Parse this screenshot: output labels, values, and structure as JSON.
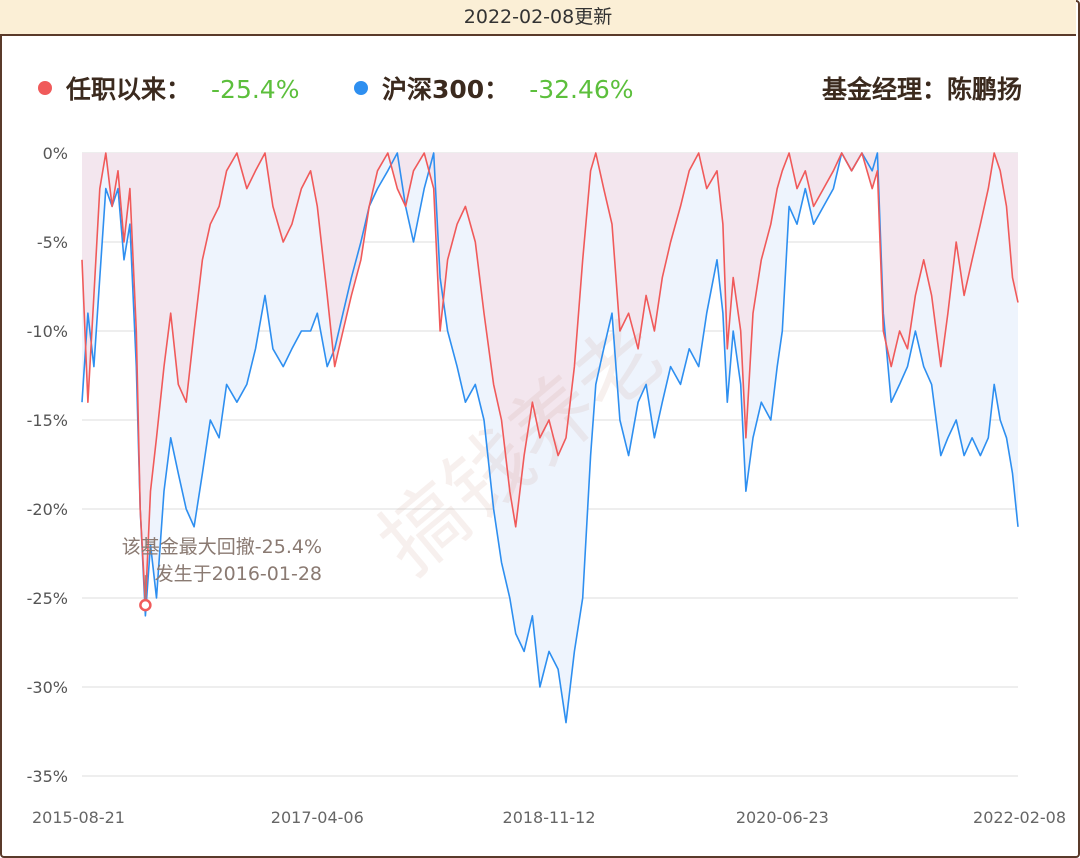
{
  "header": {
    "update_text": "2022-02-08更新"
  },
  "legend": {
    "fund_label": "任职以来：",
    "fund_value": "-25.4%",
    "fund_color": "#f05a5a",
    "index_label": "沪深300：",
    "index_value": "-32.46%",
    "index_color": "#2e8ff0",
    "manager": "基金经理：陈鹏扬"
  },
  "annotation": {
    "line1": "该基金最大回撤-25.4%",
    "line2": "发生于2016-01-28"
  },
  "watermark": "搞钱养老",
  "chart_data": {
    "type": "area",
    "x_ticks": [
      "2015-08-21",
      "2017-04-06",
      "2018-11-12",
      "2020-06-23",
      "2022-02-08"
    ],
    "x_range": [
      "2015-08-21",
      "2022-02-08"
    ],
    "y_ticks": [
      "0%",
      "-5%",
      "-10%",
      "-15%",
      "-20%",
      "-25%",
      "-30%",
      "-35%"
    ],
    "ylim": [
      -35,
      0
    ],
    "grid": true,
    "legend_position": "top",
    "series": [
      {
        "name": "任职以来",
        "color": "#f05a5a",
        "fill": "#f3e6ee",
        "points": [
          [
            "2015-08-21",
            -6
          ],
          [
            "2015-09-05",
            -14
          ],
          [
            "2015-09-20",
            -8
          ],
          [
            "2015-10-05",
            -2
          ],
          [
            "2015-10-20",
            0
          ],
          [
            "2015-11-05",
            -3
          ],
          [
            "2015-11-20",
            -1
          ],
          [
            "2015-12-05",
            -5
          ],
          [
            "2015-12-20",
            -2
          ],
          [
            "2016-01-05",
            -10
          ],
          [
            "2016-01-15",
            -20
          ],
          [
            "2016-01-28",
            -25.4
          ],
          [
            "2016-02-10",
            -19
          ],
          [
            "2016-02-25",
            -16
          ],
          [
            "2016-03-15",
            -12
          ],
          [
            "2016-04-01",
            -9
          ],
          [
            "2016-04-20",
            -13
          ],
          [
            "2016-05-10",
            -14
          ],
          [
            "2016-05-30",
            -10
          ],
          [
            "2016-06-20",
            -6
          ],
          [
            "2016-07-10",
            -4
          ],
          [
            "2016-08-01",
            -3
          ],
          [
            "2016-08-20",
            -1
          ],
          [
            "2016-09-15",
            0
          ],
          [
            "2016-10-10",
            -2
          ],
          [
            "2016-11-01",
            -1
          ],
          [
            "2016-11-25",
            0
          ],
          [
            "2016-12-15",
            -3
          ],
          [
            "2017-01-10",
            -5
          ],
          [
            "2017-02-01",
            -4
          ],
          [
            "2017-02-25",
            -2
          ],
          [
            "2017-03-20",
            -1
          ],
          [
            "2017-04-06",
            -3
          ],
          [
            "2017-05-01",
            -8
          ],
          [
            "2017-05-20",
            -12
          ],
          [
            "2017-06-10",
            -10
          ],
          [
            "2017-07-01",
            -8
          ],
          [
            "2017-07-25",
            -6
          ],
          [
            "2017-08-15",
            -3
          ],
          [
            "2017-09-05",
            -1
          ],
          [
            "2017-10-01",
            0
          ],
          [
            "2017-10-25",
            -2
          ],
          [
            "2017-11-15",
            -3
          ],
          [
            "2017-12-05",
            -1
          ],
          [
            "2018-01-01",
            0
          ],
          [
            "2018-01-25",
            -2
          ],
          [
            "2018-02-10",
            -10
          ],
          [
            "2018-03-01",
            -6
          ],
          [
            "2018-03-25",
            -4
          ],
          [
            "2018-04-15",
            -3
          ],
          [
            "2018-05-10",
            -5
          ],
          [
            "2018-06-01",
            -9
          ],
          [
            "2018-06-25",
            -13
          ],
          [
            "2018-07-15",
            -15
          ],
          [
            "2018-08-05",
            -19
          ],
          [
            "2018-08-20",
            -21
          ],
          [
            "2018-09-10",
            -17
          ],
          [
            "2018-10-01",
            -14
          ],
          [
            "2018-10-20",
            -16
          ],
          [
            "2018-11-12",
            -15
          ],
          [
            "2018-12-05",
            -17
          ],
          [
            "2018-12-25",
            -16
          ],
          [
            "2019-01-15",
            -12
          ],
          [
            "2019-02-05",
            -6
          ],
          [
            "2019-02-25",
            -1
          ],
          [
            "2019-03-10",
            0
          ],
          [
            "2019-03-30",
            -2
          ],
          [
            "2019-04-20",
            -4
          ],
          [
            "2019-05-10",
            -10
          ],
          [
            "2019-06-01",
            -9
          ],
          [
            "2019-06-25",
            -11
          ],
          [
            "2019-07-15",
            -8
          ],
          [
            "2019-08-05",
            -10
          ],
          [
            "2019-08-25",
            -7
          ],
          [
            "2019-09-15",
            -5
          ],
          [
            "2019-10-10",
            -3
          ],
          [
            "2019-11-01",
            -1
          ],
          [
            "2019-11-25",
            0
          ],
          [
            "2019-12-15",
            -2
          ],
          [
            "2020-01-10",
            -1
          ],
          [
            "2020-01-25",
            -4
          ],
          [
            "2020-02-05",
            -11
          ],
          [
            "2020-02-20",
            -7
          ],
          [
            "2020-03-10",
            -10
          ],
          [
            "2020-03-23",
            -16
          ],
          [
            "2020-04-10",
            -9
          ],
          [
            "2020-05-01",
            -6
          ],
          [
            "2020-05-25",
            -4
          ],
          [
            "2020-06-10",
            -2
          ],
          [
            "2020-06-23",
            -1
          ],
          [
            "2020-07-10",
            0
          ],
          [
            "2020-07-30",
            -2
          ],
          [
            "2020-08-20",
            -1
          ],
          [
            "2020-09-10",
            -3
          ],
          [
            "2020-10-05",
            -2
          ],
          [
            "2020-10-30",
            -1
          ],
          [
            "2020-11-20",
            0
          ],
          [
            "2020-12-15",
            -1
          ],
          [
            "2021-01-10",
            0
          ],
          [
            "2021-02-05",
            -2
          ],
          [
            "2021-02-18",
            -1
          ],
          [
            "2021-03-05",
            -10
          ],
          [
            "2021-03-25",
            -12
          ],
          [
            "2021-04-15",
            -10
          ],
          [
            "2021-05-05",
            -11
          ],
          [
            "2021-05-25",
            -8
          ],
          [
            "2021-06-15",
            -6
          ],
          [
            "2021-07-05",
            -8
          ],
          [
            "2021-07-28",
            -12
          ],
          [
            "2021-08-15",
            -9
          ],
          [
            "2021-09-05",
            -5
          ],
          [
            "2021-09-25",
            -8
          ],
          [
            "2021-10-15",
            -6
          ],
          [
            "2021-11-05",
            -4
          ],
          [
            "2021-11-25",
            -2
          ],
          [
            "2021-12-10",
            0
          ],
          [
            "2021-12-25",
            -1
          ],
          [
            "2022-01-10",
            -3
          ],
          [
            "2022-01-25",
            -7
          ],
          [
            "2022-02-08",
            -8.4
          ]
        ]
      },
      {
        "name": "沪深300",
        "color": "#2e8ff0",
        "fill": "#eef4fd",
        "points": [
          [
            "2015-08-21",
            -14
          ],
          [
            "2015-09-05",
            -9
          ],
          [
            "2015-09-20",
            -12
          ],
          [
            "2015-10-05",
            -7
          ],
          [
            "2015-10-20",
            -2
          ],
          [
            "2015-11-05",
            -3
          ],
          [
            "2015-11-20",
            -2
          ],
          [
            "2015-12-05",
            -6
          ],
          [
            "2015-12-20",
            -4
          ],
          [
            "2016-01-05",
            -12
          ],
          [
            "2016-01-15",
            -20
          ],
          [
            "2016-01-28",
            -26
          ],
          [
            "2016-02-10",
            -22
          ],
          [
            "2016-02-25",
            -25
          ],
          [
            "2016-03-15",
            -19
          ],
          [
            "2016-04-01",
            -16
          ],
          [
            "2016-04-20",
            -18
          ],
          [
            "2016-05-10",
            -20
          ],
          [
            "2016-05-30",
            -21
          ],
          [
            "2016-06-20",
            -18
          ],
          [
            "2016-07-10",
            -15
          ],
          [
            "2016-08-01",
            -16
          ],
          [
            "2016-08-20",
            -13
          ],
          [
            "2016-09-15",
            -14
          ],
          [
            "2016-10-10",
            -13
          ],
          [
            "2016-11-01",
            -11
          ],
          [
            "2016-11-25",
            -8
          ],
          [
            "2016-12-15",
            -11
          ],
          [
            "2017-01-10",
            -12
          ],
          [
            "2017-02-01",
            -11
          ],
          [
            "2017-02-25",
            -10
          ],
          [
            "2017-03-20",
            -10
          ],
          [
            "2017-04-06",
            -9
          ],
          [
            "2017-05-01",
            -12
          ],
          [
            "2017-05-20",
            -11
          ],
          [
            "2017-06-10",
            -9
          ],
          [
            "2017-07-01",
            -7
          ],
          [
            "2017-07-25",
            -5
          ],
          [
            "2017-08-15",
            -3
          ],
          [
            "2017-09-05",
            -2
          ],
          [
            "2017-10-01",
            -1
          ],
          [
            "2017-10-25",
            0
          ],
          [
            "2017-11-15",
            -3
          ],
          [
            "2017-12-05",
            -5
          ],
          [
            "2018-01-01",
            -2
          ],
          [
            "2018-01-25",
            0
          ],
          [
            "2018-02-10",
            -7
          ],
          [
            "2018-03-01",
            -10
          ],
          [
            "2018-03-25",
            -12
          ],
          [
            "2018-04-15",
            -14
          ],
          [
            "2018-05-10",
            -13
          ],
          [
            "2018-06-01",
            -15
          ],
          [
            "2018-06-25",
            -20
          ],
          [
            "2018-07-15",
            -23
          ],
          [
            "2018-08-05",
            -25
          ],
          [
            "2018-08-20",
            -27
          ],
          [
            "2018-09-10",
            -28
          ],
          [
            "2018-10-01",
            -26
          ],
          [
            "2018-10-20",
            -30
          ],
          [
            "2018-11-12",
            -28
          ],
          [
            "2018-12-05",
            -29
          ],
          [
            "2018-12-25",
            -32
          ],
          [
            "2019-01-15",
            -28
          ],
          [
            "2019-02-05",
            -25
          ],
          [
            "2019-02-25",
            -17
          ],
          [
            "2019-03-10",
            -13
          ],
          [
            "2019-03-30",
            -11
          ],
          [
            "2019-04-20",
            -9
          ],
          [
            "2019-05-10",
            -15
          ],
          [
            "2019-06-01",
            -17
          ],
          [
            "2019-06-25",
            -14
          ],
          [
            "2019-07-15",
            -13
          ],
          [
            "2019-08-05",
            -16
          ],
          [
            "2019-08-25",
            -14
          ],
          [
            "2019-09-15",
            -12
          ],
          [
            "2019-10-10",
            -13
          ],
          [
            "2019-11-01",
            -11
          ],
          [
            "2019-11-25",
            -12
          ],
          [
            "2019-12-15",
            -9
          ],
          [
            "2020-01-10",
            -6
          ],
          [
            "2020-01-25",
            -9
          ],
          [
            "2020-02-05",
            -14
          ],
          [
            "2020-02-20",
            -10
          ],
          [
            "2020-03-10",
            -13
          ],
          [
            "2020-03-23",
            -19
          ],
          [
            "2020-04-10",
            -16
          ],
          [
            "2020-05-01",
            -14
          ],
          [
            "2020-05-25",
            -15
          ],
          [
            "2020-06-10",
            -12
          ],
          [
            "2020-06-23",
            -10
          ],
          [
            "2020-07-10",
            -3
          ],
          [
            "2020-07-30",
            -4
          ],
          [
            "2020-08-20",
            -2
          ],
          [
            "2020-09-10",
            -4
          ],
          [
            "2020-10-05",
            -3
          ],
          [
            "2020-10-30",
            -2
          ],
          [
            "2020-11-20",
            0
          ],
          [
            "2020-12-15",
            -1
          ],
          [
            "2021-01-10",
            0
          ],
          [
            "2021-02-05",
            -1
          ],
          [
            "2021-02-18",
            0
          ],
          [
            "2021-03-05",
            -9
          ],
          [
            "2021-03-25",
            -14
          ],
          [
            "2021-04-15",
            -13
          ],
          [
            "2021-05-05",
            -12
          ],
          [
            "2021-05-25",
            -10
          ],
          [
            "2021-06-15",
            -12
          ],
          [
            "2021-07-05",
            -13
          ],
          [
            "2021-07-28",
            -17
          ],
          [
            "2021-08-15",
            -16
          ],
          [
            "2021-09-05",
            -15
          ],
          [
            "2021-09-25",
            -17
          ],
          [
            "2021-10-15",
            -16
          ],
          [
            "2021-11-05",
            -17
          ],
          [
            "2021-11-25",
            -16
          ],
          [
            "2021-12-10",
            -13
          ],
          [
            "2021-12-25",
            -15
          ],
          [
            "2022-01-10",
            -16
          ],
          [
            "2022-01-25",
            -18
          ],
          [
            "2022-02-08",
            -21
          ]
        ]
      }
    ]
  }
}
